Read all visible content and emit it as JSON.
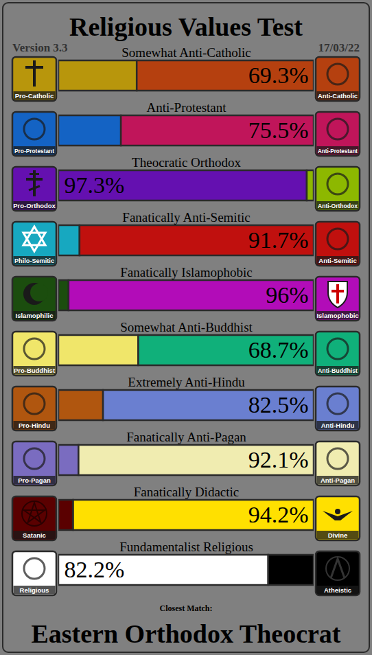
{
  "chart_data": {
    "type": "bar",
    "orientation": "horizontal",
    "stacked": true,
    "data_labels": true,
    "tick_labels": false,
    "title": "Religious Values Test",
    "subtitle": "Version 3.3",
    "date": "17/03/22",
    "caption": "Closest Match:",
    "result": "Eastern Orthodox Theocrat",
    "xlim": [
      0,
      100
    ],
    "categories": [
      "Somewhat Anti-Catholic",
      "Anti-Protestant",
      "Theocratic Orthodox",
      "Fanatically Anti-Semitic",
      "Fanatically Islamophobic",
      "Somewhat Anti-Buddhist",
      "Extremely Anti-Hindu",
      "Fanatically Anti-Pagan",
      "Fanatically Didactic",
      "Fundamentalist Religious"
    ],
    "ends": [
      [
        "Pro-Catholic",
        "Anti-Catholic"
      ],
      [
        "Pro-Protestant",
        "Anti-Protestant"
      ],
      [
        "Pro-Orthodox",
        "Anti-Orthodox"
      ],
      [
        "Philo-Semitic",
        "Anti-Semitic"
      ],
      [
        "Islamophilic",
        "Islamophobic"
      ],
      [
        "Pro-Buddhist",
        "Anti-Buddhist"
      ],
      [
        "Pro-Hindu",
        "Anti-Hindu"
      ],
      [
        "Pro-Pagan",
        "Anti-Pagan"
      ],
      [
        "Satanic",
        "Divine"
      ],
      [
        "Religious",
        "Atheistic"
      ]
    ],
    "values": [
      [
        30.7,
        69.3
      ],
      [
        24.5,
        75.5
      ],
      [
        97.3,
        2.7
      ],
      [
        8.3,
        91.7
      ],
      [
        4,
        96
      ],
      [
        31.3,
        68.7
      ],
      [
        17.5,
        82.5
      ],
      [
        7.9,
        92.1
      ],
      [
        5.8,
        94.2
      ],
      [
        82.2,
        17.8
      ]
    ],
    "value_labels": [
      [
        null,
        "69.3%"
      ],
      [
        null,
        "75.5%"
      ],
      [
        "97.3%",
        null
      ],
      [
        null,
        "91.7%"
      ],
      [
        null,
        "96%"
      ],
      [
        null,
        "68.7%"
      ],
      [
        null,
        "82.5%"
      ],
      [
        null,
        "92.1%"
      ],
      [
        null,
        "94.2%"
      ],
      [
        "82.2%",
        null
      ]
    ],
    "colors": [
      [
        "#b8960c",
        "#b5400f"
      ],
      [
        "#1463c4",
        "#c0155a"
      ],
      [
        "#6410b0",
        "#8db800"
      ],
      [
        "#17a8c0",
        "#c0100e"
      ],
      [
        "#1b4d0e",
        "#b20cb8"
      ],
      [
        "#f0e66a",
        "#10b07a"
      ],
      [
        "#b0560f",
        "#6a7fd0"
      ],
      [
        "#7a6cc0",
        "#f0ecb0"
      ],
      [
        "#5a0000",
        "#ffe000"
      ],
      [
        "#ffffff",
        "#000000"
      ]
    ]
  }
}
